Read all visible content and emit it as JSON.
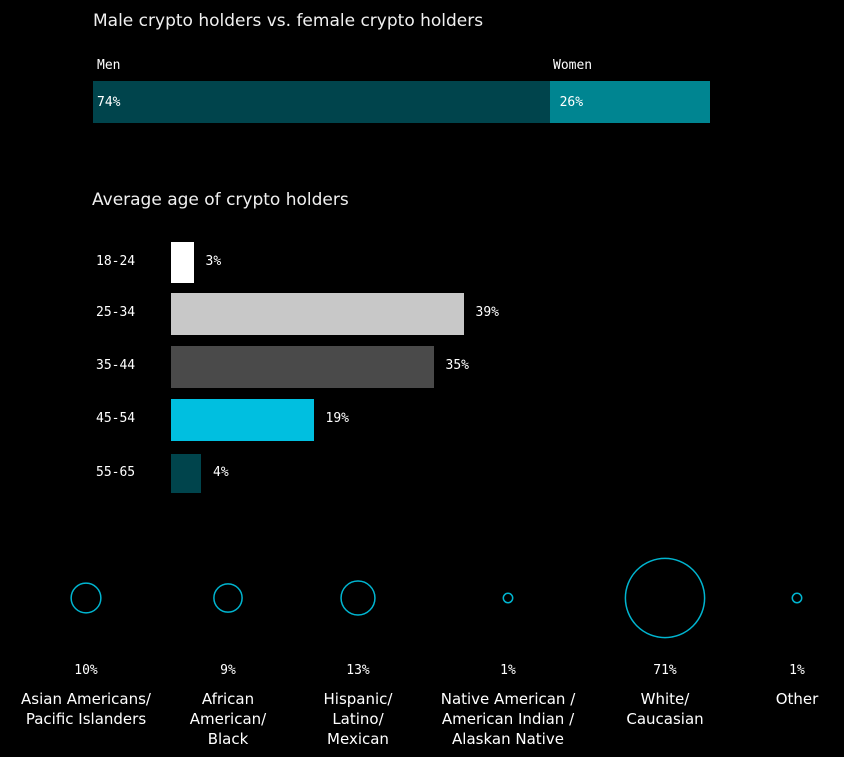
{
  "chart_data": [
    {
      "type": "bar",
      "title": "Male crypto holders vs. female crypto holders",
      "orientation": "stacked-horizontal",
      "categories": [
        "Men",
        "Women"
      ],
      "values": [
        74,
        26
      ],
      "labels": [
        "74%",
        "26%"
      ],
      "colors": [
        "#00444c",
        "#008591"
      ]
    },
    {
      "type": "bar",
      "title": "Average age of crypto holders",
      "orientation": "horizontal",
      "categories": [
        "18-24",
        "25-34",
        "35-44",
        "45-54",
        "55-65"
      ],
      "values": [
        3,
        39,
        35,
        19,
        4
      ],
      "labels": [
        "3%",
        "39%",
        "35%",
        "19%",
        "4%"
      ],
      "colors": [
        "#ffffff",
        "#c8c8c8",
        "#4a4a4a",
        "#00bfe0",
        "#00444c"
      ]
    },
    {
      "type": "bubble",
      "categories": [
        "Asian Americans/\nPacific Islanders",
        "African\nAmerican/\nBlack",
        "Hispanic/\nLatino/\nMexican",
        "Native American /\nAmerican Indian /\nAlaskan Native",
        "White/\nCaucasian",
        "Other"
      ],
      "values": [
        10,
        9,
        13,
        1,
        71,
        1
      ],
      "labels": [
        "10%",
        "9%",
        "13%",
        "1%",
        "71%",
        "1%"
      ],
      "color": "#00b5d0"
    }
  ]
}
